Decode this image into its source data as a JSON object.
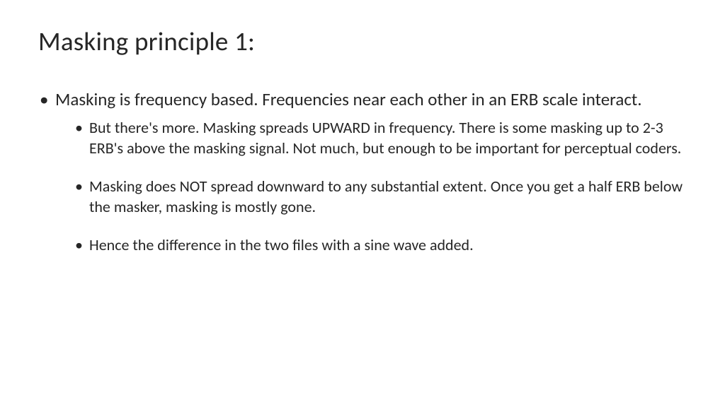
{
  "slide": {
    "title": "Masking principle 1:",
    "main_bullet": "Masking is frequency based.  Frequencies near each other in an ERB scale interact.",
    "sub_bullets": [
      "But there's more. Masking spreads UPWARD in frequency. There is some masking up to 2-3 ERB's above the masking signal. Not much, but enough to be important for perceptual coders.",
      "Masking does NOT spread downward to any substantial extent. Once you get a half ERB below the masker, masking is mostly gone.",
      "Hence the difference in the two files with a sine wave added."
    ]
  },
  "styling": {
    "background_color": "#ffffff",
    "text_color": "#262626",
    "title_fontsize": 37,
    "main_bullet_fontsize": 25,
    "sub_bullet_fontsize": 22,
    "font_family": "Calibri"
  }
}
